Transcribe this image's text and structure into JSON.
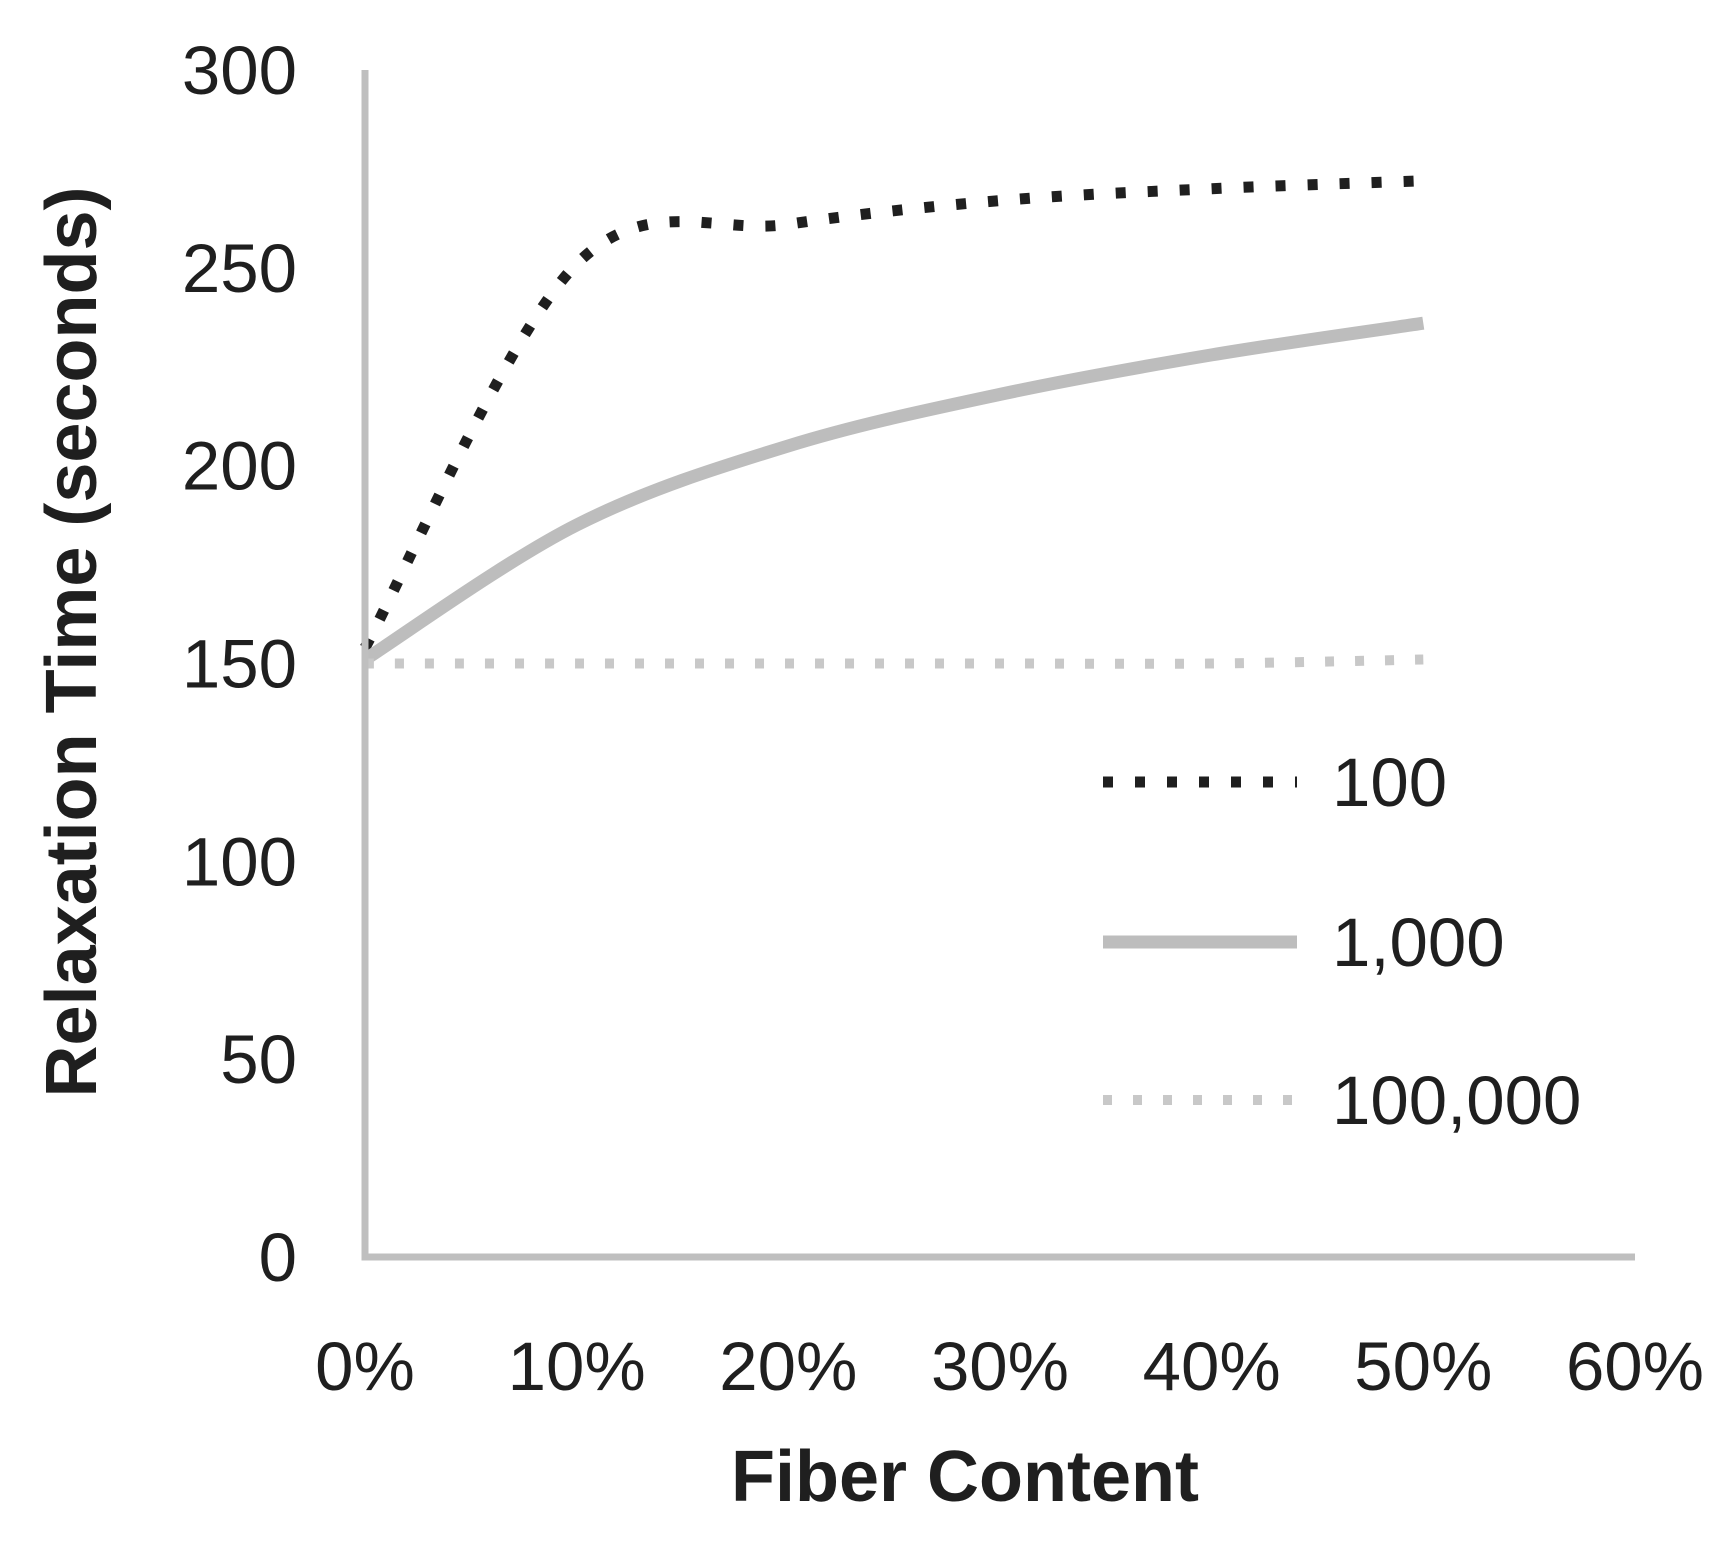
{
  "chart_data": {
    "type": "line",
    "title": "",
    "xlabel": "Fiber Content",
    "ylabel": "Relaxation Time (seconds)",
    "x_unit": "percent",
    "x_tick_labels": [
      "0%",
      "10%",
      "20%",
      "30%",
      "40%",
      "50%",
      "60%"
    ],
    "x_tick_values": [
      0,
      10,
      20,
      30,
      40,
      50,
      60
    ],
    "y_tick_labels": [
      "0",
      "50",
      "100",
      "150",
      "200",
      "250",
      "300"
    ],
    "y_tick_values": [
      0,
      50,
      100,
      150,
      200,
      250,
      300
    ],
    "xlim": [
      0,
      60
    ],
    "ylim": [
      0,
      300
    ],
    "grid": false,
    "legend_position": "right-middle",
    "x": [
      0,
      10,
      20,
      30,
      40,
      50
    ],
    "series": [
      {
        "name": "100",
        "style": "dotted",
        "color": "#1f1f1f",
        "stroke_width": 11,
        "values": [
          154,
          251,
          261,
          267,
          270,
          272
        ]
      },
      {
        "name": "1,000",
        "style": "solid",
        "color": "#bdbdbd",
        "stroke_width": 13,
        "values": [
          151,
          185,
          205,
          218,
          228,
          236
        ]
      },
      {
        "name": "100,000",
        "style": "dotted",
        "color": "#c8c8c8",
        "stroke_width": 10,
        "values": [
          150,
          150,
          150,
          150,
          150,
          151
        ]
      }
    ],
    "colors": {
      "axis": "#bfbfbf",
      "text": "#1f1f1f",
      "background": "#ffffff"
    }
  }
}
